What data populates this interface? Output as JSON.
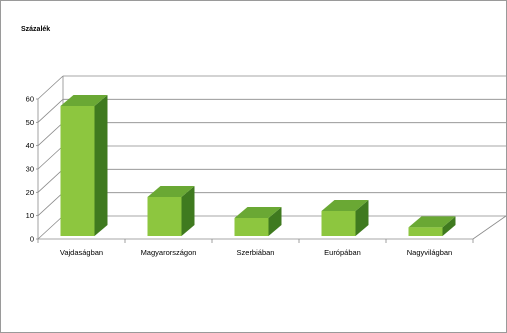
{
  "chart_data": {
    "type": "bar",
    "ylabel": "Százalék",
    "categories": [
      "Vajdaságban",
      "Magyarországon",
      "Szerbiában",
      "Európában",
      "Nagyvilágban"
    ],
    "values": [
      57,
      18,
      9,
      12,
      5
    ],
    "ylim": [
      0,
      60
    ],
    "yticks": [
      0,
      10,
      20,
      30,
      40,
      50,
      60
    ],
    "grid": true,
    "three_d": true,
    "colors": {
      "front": "#8dc63f",
      "top": "#6aa834",
      "side": "#3f7a1f",
      "grid": "#8a8a8a"
    }
  }
}
